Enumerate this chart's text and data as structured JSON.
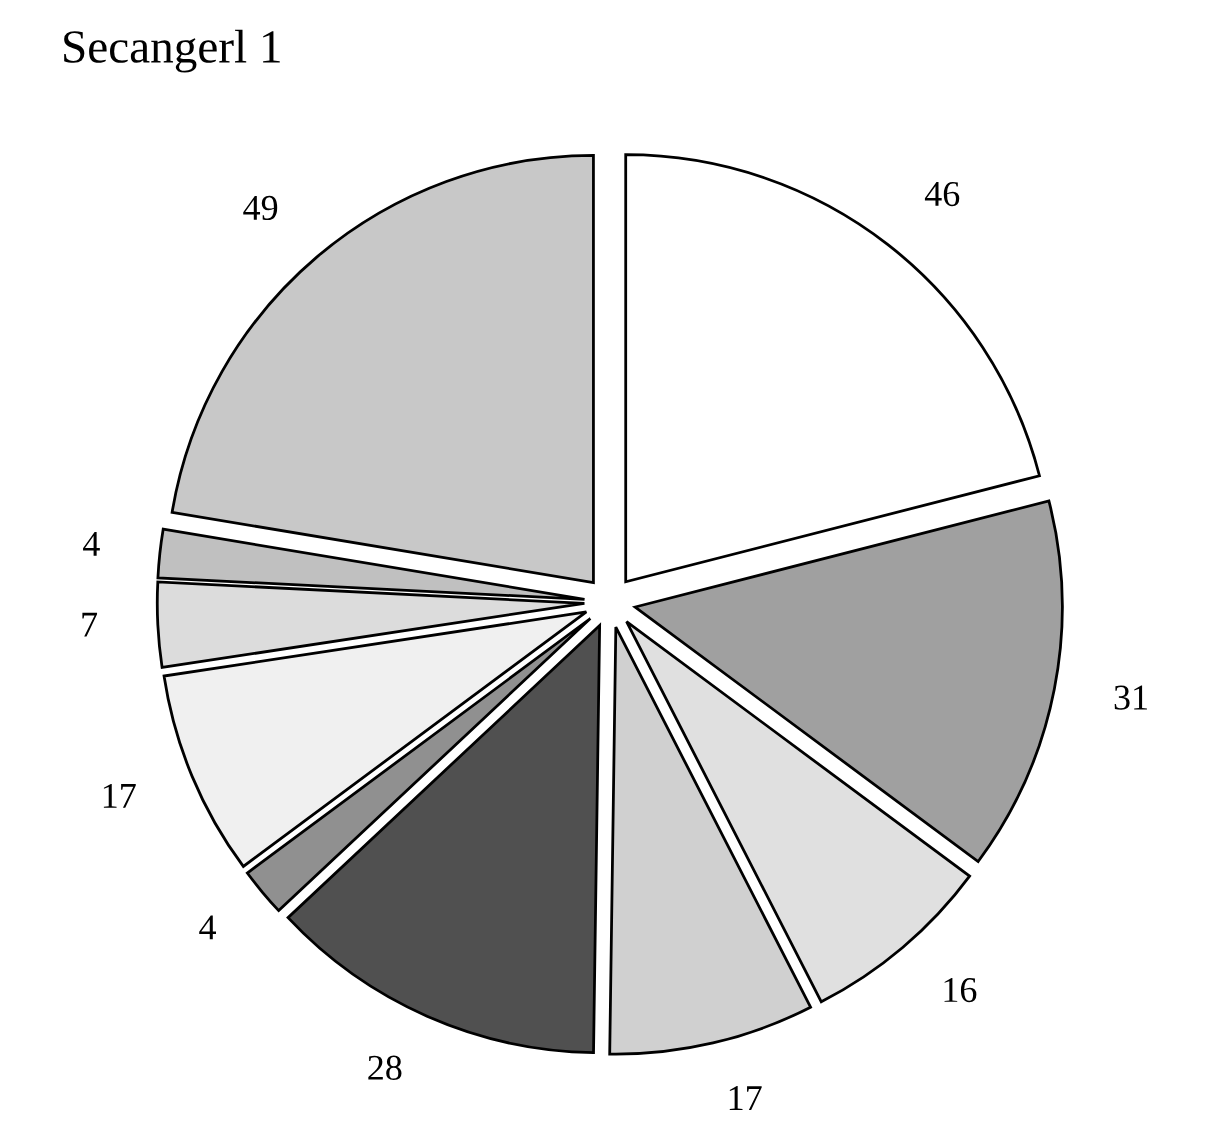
{
  "chart_data": {
    "type": "pie",
    "title": "Secangerl 1",
    "categories": [
      null,
      null,
      null,
      null,
      null,
      null,
      null,
      null,
      null,
      null
    ],
    "values": [
      46,
      31,
      16,
      17,
      28,
      4,
      17,
      7,
      4,
      49
    ],
    "colors": [
      "#ffffff",
      "#a0a0a0",
      "#e0e0e0",
      "#d0d0d0",
      "#505050",
      "#909090",
      "#f0f0f0",
      "#dcdcdc",
      "#c0c0c0",
      "#c8c8c8"
    ],
    "data_labels": true
  }
}
